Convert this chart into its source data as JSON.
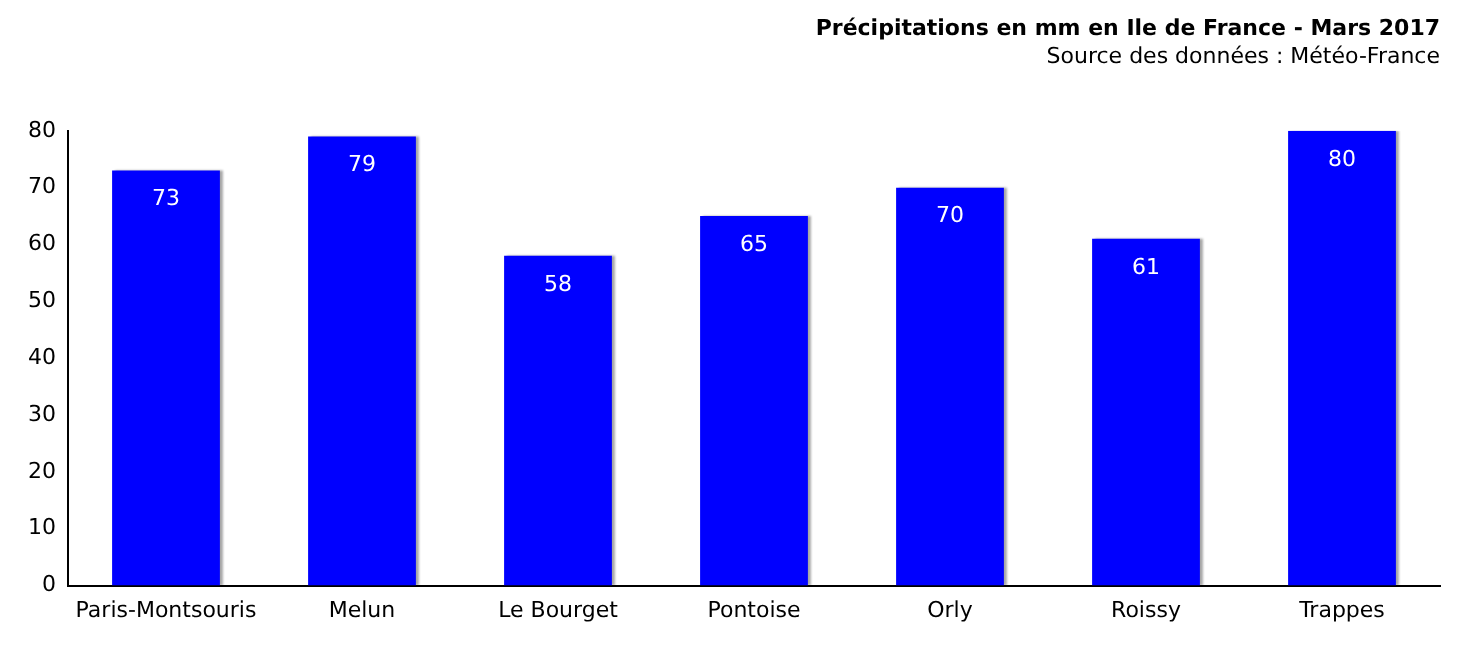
{
  "chart_data": {
    "type": "bar",
    "title": "Précipitations en mm en Ile de France - Mars 2017",
    "subtitle": "Source des données : Météo-France",
    "categories": [
      "Paris-Montsouris",
      "Melun",
      "Le Bourget",
      "Pontoise",
      "Orly",
      "Roissy",
      "Trappes"
    ],
    "values": [
      73,
      79,
      58,
      65,
      70,
      61,
      80
    ],
    "color": "#0000ff",
    "ylim": [
      0,
      80
    ],
    "yticks": [
      0,
      10,
      20,
      30,
      40,
      50,
      60,
      70,
      80
    ],
    "grid": false,
    "legend": false,
    "data_labels": true
  }
}
